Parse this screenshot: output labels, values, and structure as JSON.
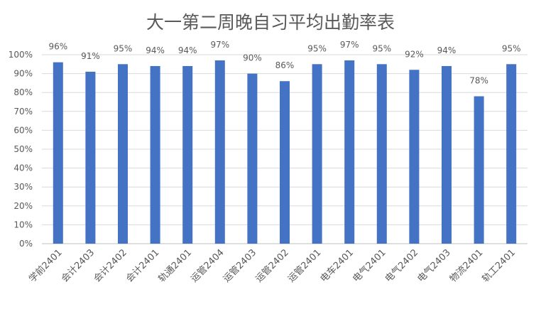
{
  "chart_data": {
    "type": "bar",
    "title": "大一第二周晚自习平均出勤率表",
    "xlabel": "",
    "ylabel": "",
    "ylim": [
      0,
      100
    ],
    "yticks": [
      "0%",
      "10%",
      "20%",
      "30%",
      "40%",
      "50%",
      "60%",
      "70%",
      "80%",
      "90%",
      "100%"
    ],
    "grid": true,
    "categories": [
      "学前2401",
      "会计2403",
      "会计2402",
      "会计2401",
      "轨通2401",
      "运管2404",
      "运管2403",
      "运管2402",
      "运管2401",
      "电车2401",
      "电气2401",
      "电气2402",
      "电气2403",
      "物流2401",
      "轨工2401"
    ],
    "values": [
      96,
      91,
      95,
      94,
      94,
      97,
      90,
      86,
      95,
      97,
      95,
      92,
      94,
      78,
      95
    ],
    "data_labels": [
      "96%",
      "91%",
      "95%",
      "94%",
      "94%",
      "97%",
      "90%",
      "86%",
      "95%",
      "97%",
      "95%",
      "92%",
      "94%",
      "78%",
      "95%"
    ],
    "colors": {
      "bar": "#4472C4",
      "grid": "#D9D9D9",
      "text": "#595959"
    }
  }
}
